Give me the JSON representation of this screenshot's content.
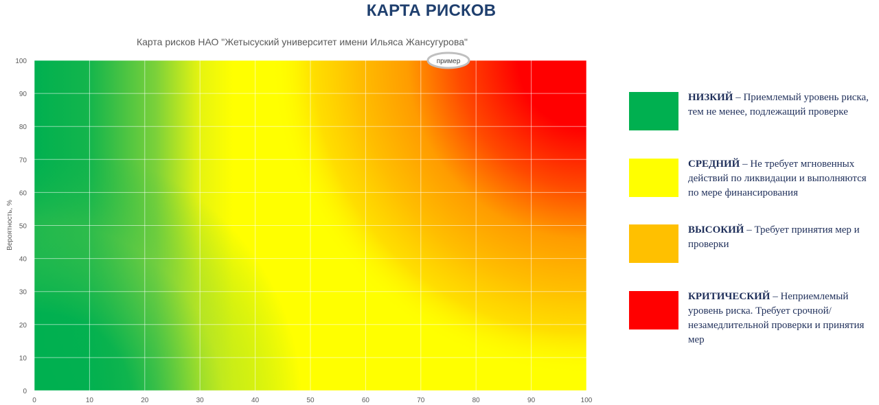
{
  "page": {
    "title": "КАРТА РИСКОВ"
  },
  "chart_data": {
    "type": "heatmap",
    "title": "Карта рисков НАО \"Жетысуский университет имени Ильяса Жансугурова\"",
    "xlabel": "",
    "ylabel": "Вероятность, %",
    "xlim": [
      0,
      100
    ],
    "ylim": [
      0,
      100
    ],
    "x_ticks": [
      0,
      10,
      20,
      30,
      40,
      50,
      60,
      70,
      80,
      90,
      100
    ],
    "y_ticks": [
      0,
      10,
      20,
      30,
      40,
      50,
      60,
      70,
      80,
      90,
      100
    ],
    "grid": true,
    "gradient": "green (bottom-left) → yellow → orange → red (top-right)",
    "colors": {
      "low": "#00b050",
      "medium": "#ffff00",
      "high": "#ffc000",
      "critical": "#ff0000"
    },
    "annotation": {
      "label": "пример",
      "x": 75,
      "y": 100
    }
  },
  "legend": {
    "items": [
      {
        "level": "НИЗКИЙ",
        "text": " – Приемлемый уровень риска, тем не менее, подлежащий проверке",
        "color": "#00b050"
      },
      {
        "level": "СРЕДНИЙ",
        "text": " – Не требует мгновенных действий по ликвидации и выполняются по мере финансирования",
        "color": "#ffff00"
      },
      {
        "level": "ВЫСОКИЙ",
        "text": " – Требует принятия мер и проверки",
        "color": "#ffc000"
      },
      {
        "level": "КРИТИЧЕСКИЙ",
        "text": " – Неприемлемый уровень риска. Требует срочной/незамедлительной проверки и принятия мер",
        "color": "#ff0000"
      }
    ]
  }
}
